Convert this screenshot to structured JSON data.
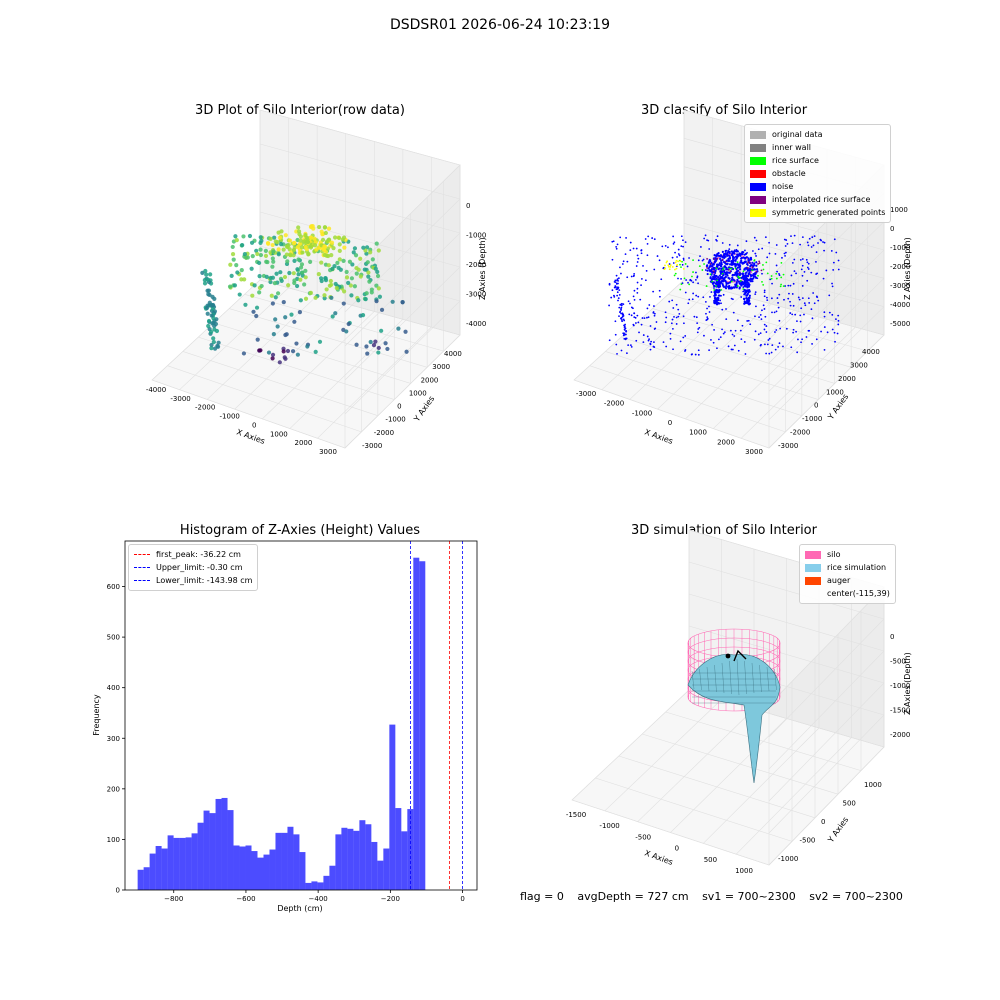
{
  "page_title": "DSDSR01 2026-06-24 10:23:19",
  "chart_data": [
    {
      "type": "scatter",
      "projection": "3d",
      "title": "3D Plot of Silo Interior(row data)",
      "xlabel": "X Axies",
      "ylabel": "Y Axies",
      "zlabel": "Z Axies (Depth)",
      "x_ticks": [
        "-4000",
        "-3000",
        "-2000",
        "-1000",
        "0",
        "1000",
        "2000",
        "3000"
      ],
      "y_ticks": [
        "-3000",
        "-2000",
        "-1000",
        "0",
        "1000",
        "2000",
        "3000",
        "4000"
      ],
      "z_ticks": [
        "0",
        "-1000",
        "-2000",
        "-3000",
        "-4000"
      ],
      "colormap": "viridis"
    },
    {
      "type": "scatter",
      "projection": "3d",
      "title": "3D classify of Silo Interior",
      "xlabel": "X Axies",
      "ylabel": "Y Axies",
      "zlabel": "Z Axies (Depth)",
      "x_ticks": [
        "-3000",
        "-2000",
        "-1000",
        "0",
        "1000",
        "2000",
        "3000"
      ],
      "y_ticks": [
        "-3000",
        "-2000",
        "-1000",
        "0",
        "1000",
        "2000",
        "3000",
        "4000"
      ],
      "z_ticks": [
        "1000",
        "0",
        "-1000",
        "-2000",
        "-3000",
        "-4000",
        "-5000"
      ],
      "legend_placement": "top-right",
      "legend": [
        {
          "label": "original data",
          "color": "#b0b0b0"
        },
        {
          "label": "inner wall",
          "color": "#808080"
        },
        {
          "label": "rice surface",
          "color": "#00ff00"
        },
        {
          "label": "obstacle",
          "color": "#ff0000"
        },
        {
          "label": "noise",
          "color": "#0000ff"
        },
        {
          "label": "interpolated rice surface",
          "color": "#800080"
        },
        {
          "label": "symmetric generated points",
          "color": "#ffff00"
        }
      ]
    },
    {
      "type": "bar",
      "title": "Histogram of Z-Axies (Height) Values",
      "xlabel": "Depth (cm)",
      "ylabel": "Frequency",
      "xlim": [
        -935,
        40
      ],
      "ylim": [
        0,
        690
      ],
      "x_ticks": [
        -800,
        -600,
        -400,
        -200,
        0
      ],
      "y_ticks": [
        0,
        100,
        200,
        300,
        400,
        500,
        600
      ],
      "bar_color": "#0000ff",
      "bin_start": -900,
      "bin_width": 16.6,
      "values": [
        40,
        45,
        72,
        87,
        82,
        108,
        103,
        103,
        104,
        112,
        133,
        157,
        152,
        180,
        182,
        158,
        88,
        86,
        88,
        77,
        64,
        70,
        80,
        113,
        113,
        125,
        110,
        75,
        14,
        17,
        15,
        28,
        48,
        110,
        123,
        121,
        117,
        138,
        130,
        95,
        58,
        82,
        327,
        162,
        116,
        160,
        657,
        650,
        0
      ],
      "legend_placement": "top-left",
      "reference_lines": [
        {
          "label": "first_peak: -36.22 cm",
          "x": -36.22,
          "color": "#ff0000"
        },
        {
          "label": "Upper_limit: -0.30 cm",
          "x": -0.3,
          "color": "#0000ff"
        },
        {
          "label": "Lower_limit: -143.98 cm",
          "x": -143.98,
          "color": "#0000ff"
        }
      ]
    },
    {
      "type": "surface",
      "projection": "3d",
      "title": "3D simulation of Silo Interior",
      "xlabel": "X Axies",
      "ylabel": "Y Axies",
      "zlabel": "Z Axies (Depth)",
      "x_ticks": [
        "-1500",
        "-1000",
        "-500",
        "0",
        "500",
        "1000"
      ],
      "y_ticks": [
        "-1000",
        "-500",
        "0",
        "500",
        "1000"
      ],
      "z_ticks": [
        "0",
        "-500",
        "-1000",
        "-1500",
        "-2000"
      ],
      "legend_placement": "top-right",
      "legend": [
        {
          "label": "silo",
          "color": "#ff69b4"
        },
        {
          "label": "rice simulation",
          "color": "#87ceeb"
        },
        {
          "label": "auger",
          "color": "#ff4500"
        },
        {
          "label": "center(-115,39)",
          "color": ""
        }
      ]
    }
  ],
  "status": {
    "flag": "flag = 0",
    "avg_depth": "avgDepth = 727 cm",
    "sv1": "sv1 = 700~2300",
    "sv2": "sv2 = 700~2300"
  }
}
